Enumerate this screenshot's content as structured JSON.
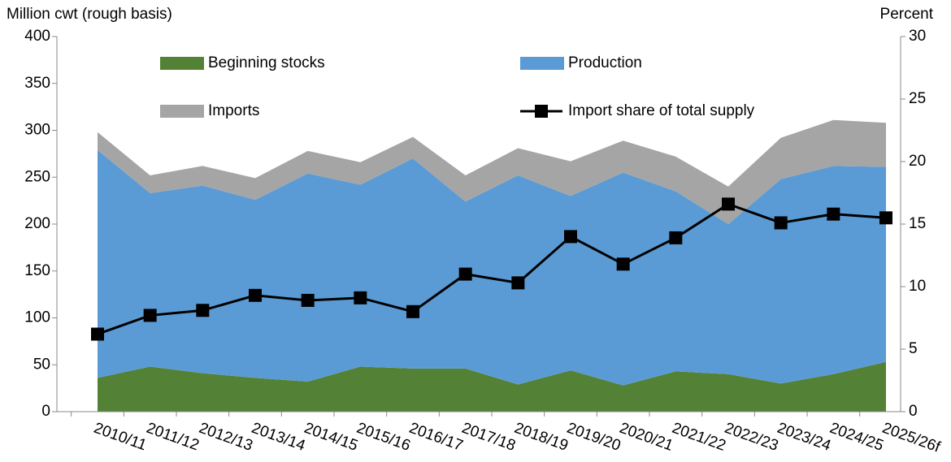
{
  "chart_data": {
    "type": "area",
    "y_label": "Million cwt (rough basis)",
    "y2_label": "Percent",
    "categories": [
      "2010/11",
      "2011/12",
      "2012/13",
      "2013/14",
      "2014/15",
      "2015/16",
      "2016/17",
      "2017/18",
      "2018/19",
      "2019/20",
      "2020/21",
      "2021/22",
      "2022/23",
      "2023/24",
      "2024/25",
      "2025/26f"
    ],
    "series": [
      {
        "name": "Beginning stocks",
        "color": "#538135",
        "values": [
          36,
          48,
          41,
          36,
          32,
          48,
          46,
          46,
          29,
          44,
          28,
          43,
          40,
          30,
          40,
          53
        ]
      },
      {
        "name": "Production",
        "color": "#5b9bd5",
        "values": [
          243,
          185,
          200,
          190,
          222,
          194,
          224,
          178,
          223,
          186,
          227,
          192,
          160,
          218,
          222,
          208
        ]
      },
      {
        "name": "Imports",
        "color": "#a5a5a5",
        "values": [
          19,
          19,
          21,
          23,
          24,
          24,
          23,
          28,
          29,
          37,
          34,
          37,
          40,
          44,
          49,
          47
        ]
      },
      {
        "name": "Import share of total supply",
        "color": "#000000",
        "type": "line",
        "axis": "y2",
        "values": [
          6.2,
          7.7,
          8.1,
          9.3,
          8.9,
          9.1,
          8.0,
          11.0,
          10.3,
          14.0,
          11.8,
          13.9,
          16.6,
          15.1,
          15.8,
          15.5
        ]
      }
    ],
    "ylim": [
      0,
      400
    ],
    "yticks": [
      0,
      50,
      100,
      150,
      200,
      250,
      300,
      350,
      400
    ],
    "y2lim": [
      0,
      30
    ],
    "y2ticks": [
      0,
      5,
      10,
      15,
      20,
      25,
      30
    ]
  }
}
